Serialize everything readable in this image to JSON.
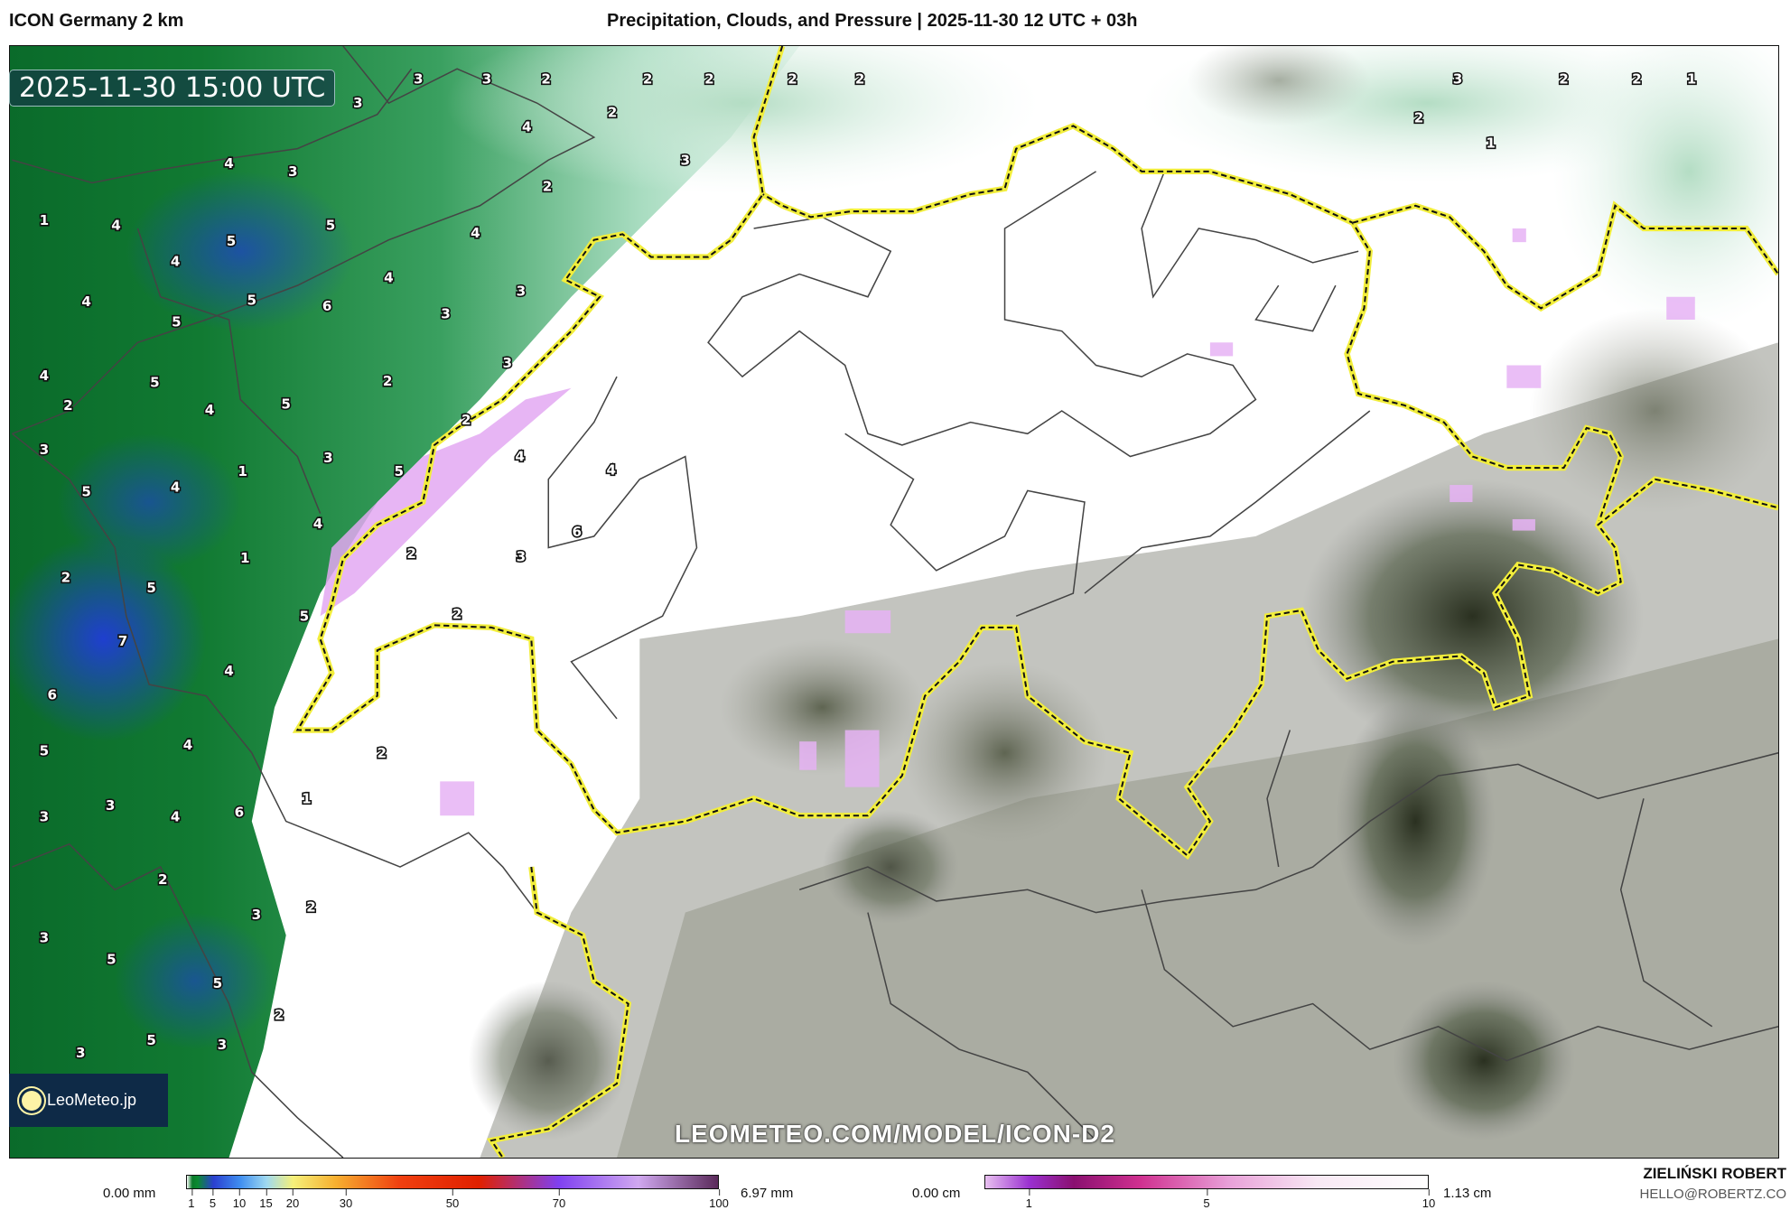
{
  "header": {
    "model": "ICON Germany 2 km",
    "title": "Precipitation, Clouds, and Pressure | 2025-11-30 12 UTC + 03h"
  },
  "map": {
    "valid_time": "2025-11-30 15:00 UTC",
    "watermark": "LEOMETEO.COM/MODEL/ICON-D2",
    "logo": "LeoMeteo.jp",
    "border_color": "#f2ee3c",
    "labels": [
      "3",
      "3",
      "2",
      "2",
      "2",
      "2",
      "2",
      "3",
      "2",
      "2",
      "2",
      "1",
      "1",
      "2",
      "3",
      "4",
      "4",
      "3",
      "1",
      "4",
      "5",
      "5",
      "2",
      "4",
      "4",
      "5",
      "6",
      "4",
      "3",
      "3",
      "5",
      "4",
      "5",
      "4",
      "2",
      "4",
      "5",
      "2",
      "3",
      "3",
      "5",
      "4",
      "1",
      "3",
      "5",
      "2",
      "3",
      "4",
      "4",
      "6",
      "1",
      "2",
      "5",
      "4",
      "5",
      "2",
      "7",
      "4",
      "2",
      "6",
      "3",
      "5",
      "2",
      "4",
      "1",
      "3",
      "4",
      "3",
      "6",
      "2",
      "3",
      "2",
      "3",
      "5",
      "5",
      "3",
      "5",
      "2",
      "3"
    ]
  },
  "legend": {
    "precip": {
      "min": "0.00 mm",
      "max": "6.97 mm",
      "ticks": [
        "1",
        "5",
        "10",
        "15",
        "20",
        "30",
        "50",
        "70",
        "100"
      ]
    },
    "snow": {
      "min": "0.00 cm",
      "max": "1.13 cm",
      "ticks": [
        "1",
        "5",
        "10"
      ]
    },
    "author": "ZIELIŃSKI ROBERT",
    "contact": "HELLO@ROBERTZ.CO"
  }
}
